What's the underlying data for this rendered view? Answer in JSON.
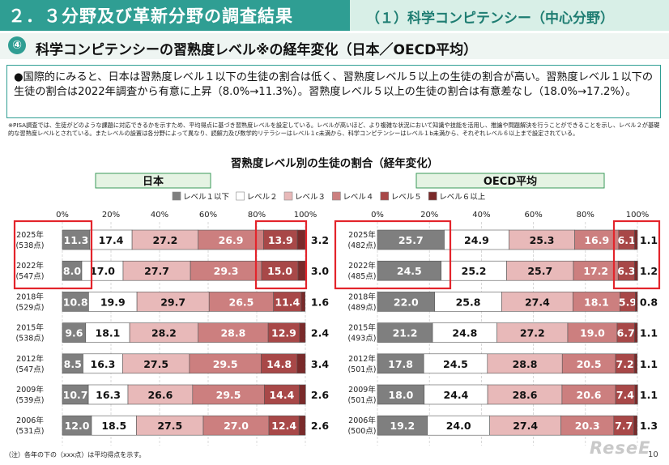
{
  "header": {
    "left_title": "２．３分野及び革新分野の調査結果",
    "right_title": "（１）科学コンピテンシー（中心分野）"
  },
  "section": {
    "number": "④",
    "title": "科学コンピテンシーの習熟度レベル※の経年変化（日本／OECD平均）"
  },
  "summary_text": "●国際的にみると、日本は習熟度レベル１以下の生徒の割合は低く、習熟度レベル５以上の生徒の割合が高い。習熟度レベル１以下の生徒の割合は2022年調査から有意に上昇（8.0%→11.3%）。習熟度レベル５以上の生徒の割合は有意差なし（18.0%→17.2%）。",
  "note_text": "※PISA調査では、生徒がどのような課題に対応できるかを示すため、平均得点に基づき習熟度レベルを設定している。レベルが高いほど、より複雑な状況において知識や技能を活用し、推論や問題解決を行うことができることを示し、レベル２が基礎的な習熟度レベルとされている。またレベルの設置は各分野によって異なり、読解力及び数学的リテラシーはレベル１c未満から、科学コンピテンシーはレベル１b未満から、それぞれレベル６以上まで設定されている。",
  "footnote": "（注）各年の下の（xxx点）は平均得点を示す。",
  "page_number": "10",
  "watermark": "ReseE",
  "chart_data": {
    "type": "bar",
    "orientation": "horizontal-stacked",
    "title": "習熟度レベル別の生徒の割合（経年変化）",
    "legend": [
      "レベル１以下",
      "レベル２",
      "レベル３",
      "レベル４",
      "レベル５",
      "レベル６以上"
    ],
    "legend_placement": "top",
    "colors": [
      "#7f7f7f",
      "#ffffff",
      "#e8b9b9",
      "#cc7f7f",
      "#a84848",
      "#7a2a2a"
    ],
    "ticks": [
      "0%",
      "20%",
      "40%",
      "60%",
      "80%",
      "100%"
    ],
    "xlim": [
      0,
      100
    ],
    "panels": [
      {
        "name": "日本",
        "rows": [
          {
            "year": "2025年",
            "score": "(538点)",
            "values": [
              11.3,
              17.4,
              27.2,
              26.9,
              13.9,
              3.2
            ],
            "highlight": true
          },
          {
            "year": "2022年",
            "score": "(547点)",
            "values": [
              8.0,
              17.0,
              27.7,
              29.3,
              15.0,
              3.0
            ],
            "highlight": true
          },
          {
            "year": "2018年",
            "score": "(529点)",
            "values": [
              10.8,
              19.9,
              29.7,
              26.5,
              11.4,
              1.6
            ]
          },
          {
            "year": "2015年",
            "score": "(538点)",
            "values": [
              9.6,
              18.1,
              28.2,
              28.8,
              12.9,
              2.4
            ]
          },
          {
            "year": "2012年",
            "score": "(547点)",
            "values": [
              8.5,
              16.3,
              27.5,
              29.5,
              14.8,
              3.4
            ]
          },
          {
            "year": "2009年",
            "score": "(539点)",
            "values": [
              10.7,
              16.3,
              26.6,
              29.5,
              14.4,
              2.6
            ]
          },
          {
            "year": "2006年",
            "score": "(531点)",
            "values": [
              12.0,
              18.5,
              27.5,
              27.0,
              12.4,
              2.6
            ]
          }
        ]
      },
      {
        "name": "OECD平均",
        "rows": [
          {
            "year": "2025年",
            "score": "(482点)",
            "values": [
              25.7,
              24.9,
              25.3,
              16.9,
              6.1,
              1.1
            ],
            "highlight": true
          },
          {
            "year": "2022年",
            "score": "(485点)",
            "values": [
              24.5,
              25.2,
              25.7,
              17.2,
              6.3,
              1.2
            ],
            "highlight": true
          },
          {
            "year": "2018年",
            "score": "(489点)",
            "values": [
              22.0,
              25.8,
              27.4,
              18.1,
              5.9,
              0.8
            ]
          },
          {
            "year": "2015年",
            "score": "(493点)",
            "values": [
              21.2,
              24.8,
              27.2,
              19.0,
              6.7,
              1.1
            ]
          },
          {
            "year": "2012年",
            "score": "(501点)",
            "values": [
              17.8,
              24.5,
              28.8,
              20.5,
              7.2,
              1.1
            ]
          },
          {
            "year": "2009年",
            "score": "(501点)",
            "values": [
              18.0,
              24.4,
              28.6,
              20.6,
              7.4,
              1.1
            ]
          },
          {
            "year": "2006年",
            "score": "(500点)",
            "values": [
              19.2,
              24.0,
              27.4,
              20.3,
              7.7,
              1.3
            ]
          }
        ]
      }
    ]
  }
}
